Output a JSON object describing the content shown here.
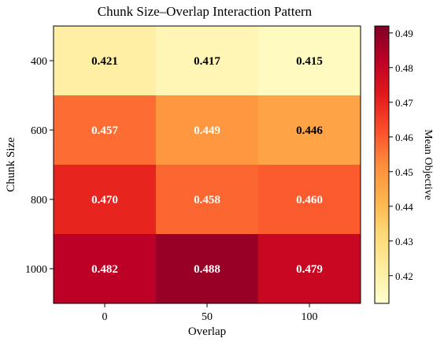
{
  "chart_data": {
    "type": "heatmap",
    "title": "Chunk Size–Overlap Interaction Pattern",
    "xlabel": "Overlap",
    "ylabel": "Chunk Size",
    "x_categories": [
      "0",
      "50",
      "100"
    ],
    "y_categories": [
      "400",
      "600",
      "800",
      "1000"
    ],
    "values": [
      [
        0.421,
        0.417,
        0.415
      ],
      [
        0.457,
        0.449,
        0.446
      ],
      [
        0.47,
        0.458,
        0.46
      ],
      [
        0.482,
        0.488,
        0.479
      ]
    ],
    "cell_labels": [
      [
        "0.421",
        "0.417",
        "0.415"
      ],
      [
        "0.457",
        "0.449",
        "0.446"
      ],
      [
        "0.470",
        "0.458",
        "0.460"
      ],
      [
        "0.482",
        "0.488",
        "0.479"
      ]
    ],
    "colorbar": {
      "label": "Mean Objective",
      "range": [
        0.412,
        0.492
      ],
      "ticks": [
        "0.42",
        "0.43",
        "0.44",
        "0.45",
        "0.46",
        "0.47",
        "0.48",
        "0.49"
      ],
      "colormap": "YlOrRd"
    },
    "grid": false
  },
  "colors": {
    "colormap_stops": [
      "#ffffcc",
      "#ffeda0",
      "#fed976",
      "#feb24c",
      "#fd8d3c",
      "#fc4e2a",
      "#e31a1c",
      "#bd0026",
      "#800026"
    ],
    "label_dark": "#000000",
    "label_light": "#ffffff"
  }
}
